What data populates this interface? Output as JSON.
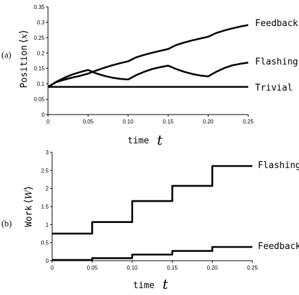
{
  "chart_data": [
    {
      "panel_label": "(a)",
      "type": "line",
      "xlabel": "time",
      "xlabel_symbol": "t",
      "ylabel": "Position",
      "ylabel_symbol": "x",
      "xlim": [
        0,
        0.25
      ],
      "ylim": [
        0,
        0.35
      ],
      "xticks": [
        "0",
        "0.05",
        "0.10",
        "0.15",
        "0.20",
        "0.25"
      ],
      "yticks": [
        "0",
        "0.05",
        "0.1",
        "0.15",
        "0.2",
        "0.25",
        "0.3",
        "0.35"
      ],
      "grid": false,
      "series": [
        {
          "name": "Feedback",
          "points": [
            [
              0,
              0.09
            ],
            [
              0.01,
              0.105
            ],
            [
              0.02,
              0.113
            ],
            [
              0.03,
              0.12
            ],
            [
              0.04,
              0.126
            ],
            [
              0.05,
              0.133
            ],
            [
              0.06,
              0.143
            ],
            [
              0.07,
              0.152
            ],
            [
              0.08,
              0.16
            ],
            [
              0.09,
              0.167
            ],
            [
              0.1,
              0.173
            ],
            [
              0.11,
              0.186
            ],
            [
              0.12,
              0.194
            ],
            [
              0.13,
              0.201
            ],
            [
              0.14,
              0.207
            ],
            [
              0.15,
              0.213
            ],
            [
              0.16,
              0.226
            ],
            [
              0.17,
              0.234
            ],
            [
              0.18,
              0.241
            ],
            [
              0.19,
              0.247
            ],
            [
              0.2,
              0.253
            ],
            [
              0.21,
              0.265
            ],
            [
              0.22,
              0.273
            ],
            [
              0.23,
              0.28
            ],
            [
              0.24,
              0.286
            ],
            [
              0.25,
              0.291
            ]
          ]
        },
        {
          "name": "Flashing",
          "points": [
            [
              0,
              0.09
            ],
            [
              0.01,
              0.106
            ],
            [
              0.02,
              0.119
            ],
            [
              0.03,
              0.13
            ],
            [
              0.04,
              0.138
            ],
            [
              0.05,
              0.145
            ],
            [
              0.06,
              0.134
            ],
            [
              0.07,
              0.126
            ],
            [
              0.08,
              0.12
            ],
            [
              0.09,
              0.116
            ],
            [
              0.1,
              0.114
            ],
            [
              0.11,
              0.128
            ],
            [
              0.12,
              0.139
            ],
            [
              0.13,
              0.148
            ],
            [
              0.14,
              0.154
            ],
            [
              0.15,
              0.159
            ],
            [
              0.16,
              0.148
            ],
            [
              0.17,
              0.139
            ],
            [
              0.18,
              0.132
            ],
            [
              0.19,
              0.127
            ],
            [
              0.2,
              0.124
            ],
            [
              0.21,
              0.139
            ],
            [
              0.22,
              0.151
            ],
            [
              0.23,
              0.16
            ],
            [
              0.24,
              0.165
            ],
            [
              0.25,
              0.169
            ]
          ]
        },
        {
          "name": "Trivial",
          "points": [
            [
              0,
              0.09
            ],
            [
              0.25,
              0.09
            ]
          ]
        }
      ]
    },
    {
      "panel_label": "(b)",
      "type": "line",
      "xlabel": "time",
      "xlabel_symbol": "t",
      "ylabel": "Work",
      "ylabel_symbol": "W",
      "xlim": [
        0,
        0.25
      ],
      "ylim": [
        0,
        3
      ],
      "xticks": [
        "0",
        "0.05",
        "0.10",
        "0.15",
        "0.20",
        "0.25"
      ],
      "yticks": [
        "0",
        "0.5",
        "1",
        "1.5",
        "2",
        "2.5",
        "3"
      ],
      "grid": false,
      "series": [
        {
          "name": "Flashing",
          "points": [
            [
              0,
              0.75
            ],
            [
              0.05,
              0.75
            ],
            [
              0.05,
              1.07
            ],
            [
              0.1,
              1.07
            ],
            [
              0.1,
              1.65
            ],
            [
              0.15,
              1.65
            ],
            [
              0.15,
              2.07
            ],
            [
              0.2,
              2.07
            ],
            [
              0.2,
              2.62
            ],
            [
              0.25,
              2.62
            ]
          ]
        },
        {
          "name": "Feedback",
          "points": [
            [
              0,
              0.02
            ],
            [
              0.05,
              0.02
            ],
            [
              0.05,
              0.07
            ],
            [
              0.1,
              0.07
            ],
            [
              0.1,
              0.17
            ],
            [
              0.15,
              0.17
            ],
            [
              0.15,
              0.27
            ],
            [
              0.2,
              0.27
            ],
            [
              0.2,
              0.38
            ],
            [
              0.25,
              0.38
            ]
          ]
        }
      ]
    }
  ]
}
